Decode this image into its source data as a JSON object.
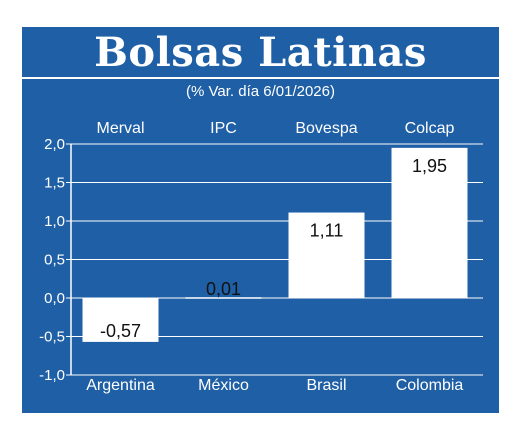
{
  "colors": {
    "panel": "#1f5fa6",
    "bar": "#ffffff",
    "grid": "#ffffff",
    "text": "#ffffff",
    "label_text": "#111111"
  },
  "chart_data": {
    "type": "bar",
    "title": "Bolsas Latinas",
    "subtitle": "(% Var. día 6/01/2026)",
    "top_labels": [
      "Merval",
      "IPC",
      "Bovespa",
      "Colcap"
    ],
    "categories": [
      "Argentina",
      "México",
      "Brasil",
      "Colombia"
    ],
    "values": [
      -0.57,
      0.01,
      1.11,
      1.95
    ],
    "value_labels": [
      "-0,57",
      "0,01",
      "1,11",
      "1,95"
    ],
    "ylim": [
      -1.0,
      2.0
    ],
    "yticks": [
      2.0,
      1.5,
      1.0,
      0.5,
      0.0,
      -0.5,
      -1.0
    ],
    "ytick_labels": [
      "2,0",
      "1,5",
      "1,0",
      "0,5",
      "0,0",
      "-0,5",
      "-1,0"
    ],
    "grid": true,
    "xlabel": "",
    "ylabel": ""
  }
}
